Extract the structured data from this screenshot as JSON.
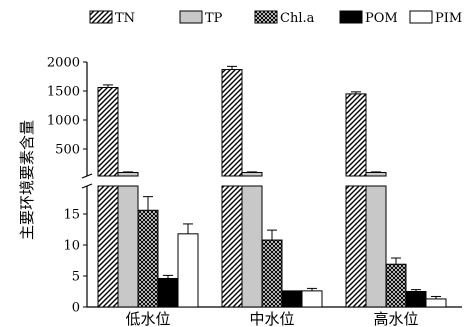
{
  "chart_data": {
    "type": "bar",
    "ylabel": "主要环境要素含量",
    "categories": [
      "低水位",
      "中水位",
      "高水位"
    ],
    "series": [
      {
        "name": "TN",
        "values": [
          1560,
          1870,
          1450
        ],
        "errors": [
          45,
          55,
          35
        ],
        "pattern": "hatch"
      },
      {
        "name": "TP",
        "values": [
          95,
          95,
          95
        ],
        "errors": [
          10,
          10,
          10
        ],
        "pattern": "gray"
      },
      {
        "name": "Chl.a",
        "values": [
          15.6,
          10.8,
          6.9
        ],
        "errors": [
          2.2,
          1.6,
          1.0
        ],
        "pattern": "crosshatch"
      },
      {
        "name": "POM",
        "values": [
          4.6,
          2.6,
          2.5
        ],
        "errors": [
          0.5,
          0.0,
          0.3
        ],
        "pattern": "black"
      },
      {
        "name": "PIM",
        "values": [
          11.8,
          2.6,
          1.3
        ],
        "errors": [
          1.6,
          0.4,
          0.4
        ],
        "pattern": "white"
      }
    ],
    "y_axis_break": {
      "lower_range": [
        0,
        20
      ],
      "lower_ticks": [
        0,
        5,
        10,
        15
      ],
      "upper_range": [
        0,
        2000
      ],
      "upper_ticks": [
        500,
        1000,
        1500,
        2000
      ]
    },
    "grid": false,
    "legend_position": "top"
  },
  "colors": {
    "TP": "#c8c8c8",
    "POM": "#000000",
    "PIM": "#ffffff",
    "axis": "#000000"
  }
}
